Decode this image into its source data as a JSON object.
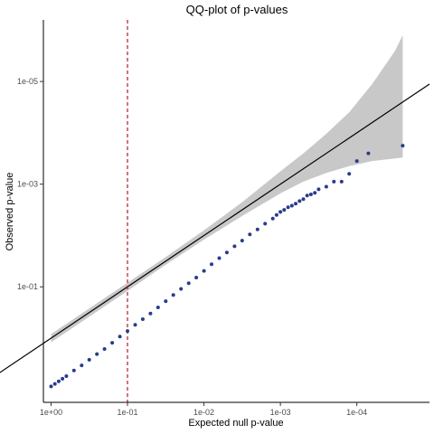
{
  "chart_data": {
    "type": "scatter",
    "title": "QQ-plot of p-values",
    "xlabel": "Expected null p-value",
    "ylabel": "Observed p-value",
    "x_scale": "-log10, reversed",
    "y_scale": "-log10, reversed",
    "x_ticks": [
      "1e+00",
      "1e-01",
      "1e-02",
      "1e-03",
      "1e-04"
    ],
    "y_ticks": [
      "1e-01",
      "1e-03",
      "1e-05"
    ],
    "xlim_minus_log10": [
      -0.1,
      4.95
    ],
    "ylim_minus_log10": [
      -1.25,
      6.2
    ],
    "grid": false,
    "reference_line": {
      "type": "identity",
      "color": "#000000"
    },
    "vline": {
      "x": "1e-01",
      "style": "dashed",
      "color": "#b2182b"
    },
    "confidence_band": {
      "color": "#c8c8c8",
      "x_minus_log10": [
        0.0,
        0.5,
        1.0,
        1.5,
        2.0,
        2.5,
        3.0,
        3.3,
        3.6,
        3.9,
        4.2,
        4.5,
        4.6
      ],
      "lower_minus_log10": [
        -0.08,
        0.42,
        0.92,
        1.43,
        1.92,
        2.38,
        2.82,
        3.05,
        3.22,
        3.35,
        3.45,
        3.5,
        3.52
      ],
      "upper_minus_log10": [
        0.08,
        0.58,
        1.08,
        1.58,
        2.1,
        2.65,
        3.25,
        3.6,
        3.98,
        4.4,
        4.95,
        5.6,
        5.9
      ]
    },
    "series": [
      {
        "color": "#283c8c",
        "x_minus_log10": [
          0.0,
          0.05,
          0.1,
          0.15,
          0.2,
          0.3,
          0.4,
          0.5,
          0.6,
          0.7,
          0.8,
          0.9,
          1.0,
          1.1,
          1.2,
          1.3,
          1.4,
          1.5,
          1.6,
          1.7,
          1.8,
          1.9,
          2.0,
          2.1,
          2.2,
          2.3,
          2.4,
          2.5,
          2.6,
          2.7,
          2.8,
          2.9,
          2.95,
          3.0,
          3.05,
          3.1,
          3.15,
          3.2,
          3.25,
          3.3,
          3.35,
          3.4,
          3.45,
          3.5,
          3.6,
          3.7,
          3.8,
          3.9,
          4.0,
          4.15,
          4.6
        ],
        "y_minus_log10": [
          -0.94,
          -0.89,
          -0.84,
          -0.79,
          -0.74,
          -0.63,
          -0.53,
          -0.42,
          -0.31,
          -0.21,
          -0.09,
          0.03,
          0.14,
          0.26,
          0.37,
          0.48,
          0.6,
          0.72,
          0.84,
          0.96,
          1.07,
          1.18,
          1.31,
          1.44,
          1.56,
          1.67,
          1.79,
          1.9,
          2.02,
          2.12,
          2.23,
          2.33,
          2.4,
          2.46,
          2.5,
          2.55,
          2.58,
          2.62,
          2.67,
          2.71,
          2.78,
          2.8,
          2.83,
          2.9,
          2.95,
          3.05,
          3.05,
          3.2,
          3.45,
          3.6,
          3.75
        ]
      }
    ]
  }
}
